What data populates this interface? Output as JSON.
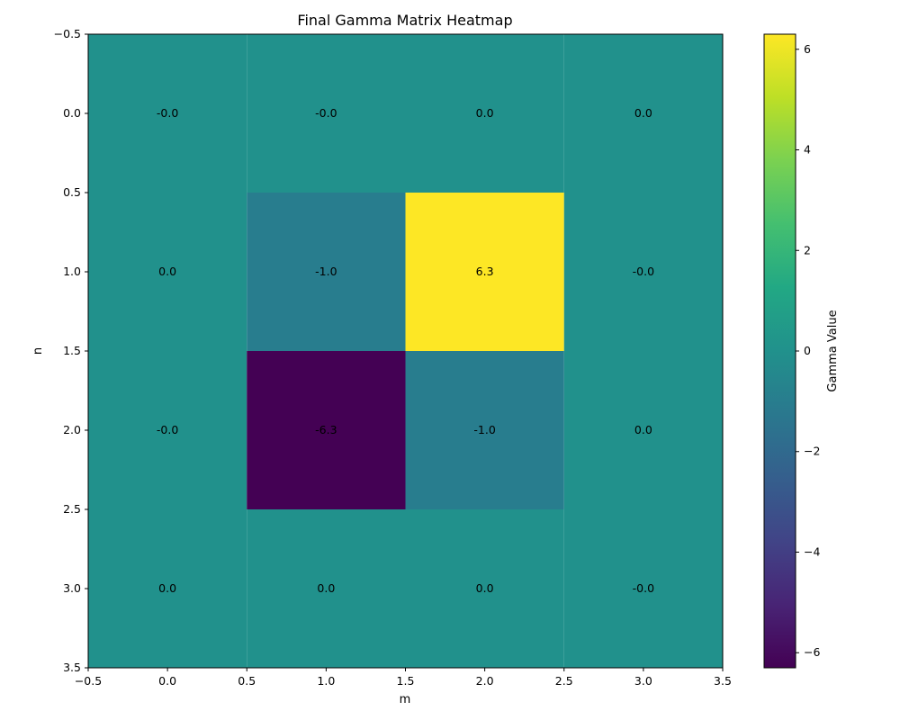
{
  "chart_data": {
    "type": "heatmap",
    "title": "Final Gamma Matrix Heatmap",
    "xlabel": "m",
    "ylabel": "n",
    "colorbar_label": "Gamma Value",
    "colormap": "viridis",
    "color_range": [
      -6.3,
      6.3
    ],
    "xlim": [
      -0.5,
      3.5
    ],
    "ylim": [
      3.5,
      -0.5
    ],
    "xticks": [
      -0.5,
      0.0,
      0.5,
      1.0,
      1.5,
      2.0,
      2.5,
      3.0,
      3.5
    ],
    "xtick_labels": [
      "−0.5",
      "0.0",
      "0.5",
      "1.0",
      "1.5",
      "2.0",
      "2.5",
      "3.0",
      "3.5"
    ],
    "yticks": [
      -0.5,
      0.0,
      0.5,
      1.0,
      1.5,
      2.0,
      2.5,
      3.0,
      3.5
    ],
    "ytick_labels": [
      "−0.5",
      "0.0",
      "0.5",
      "1.0",
      "1.5",
      "2.0",
      "2.5",
      "3.0",
      "3.5"
    ],
    "colorbar_ticks": [
      -6,
      -4,
      -2,
      0,
      2,
      4,
      6
    ],
    "colorbar_tick_labels": [
      "−6",
      "−4",
      "−2",
      "0",
      "2",
      "4",
      "6"
    ],
    "values": [
      [
        0.0,
        0.0,
        0.0,
        0.0
      ],
      [
        0.0,
        -1.0,
        6.3,
        0.0
      ],
      [
        0.0,
        -6.3,
        -1.0,
        0.0
      ],
      [
        0.0,
        0.0,
        0.0,
        0.0
      ]
    ],
    "cell_labels": [
      [
        "-0.0",
        "-0.0",
        "0.0",
        "0.0"
      ],
      [
        "0.0",
        "-1.0",
        "6.3",
        "-0.0"
      ],
      [
        "-0.0",
        "-6.3",
        "-1.0",
        "0.0"
      ],
      [
        "0.0",
        "0.0",
        "0.0",
        "-0.0"
      ]
    ]
  }
}
